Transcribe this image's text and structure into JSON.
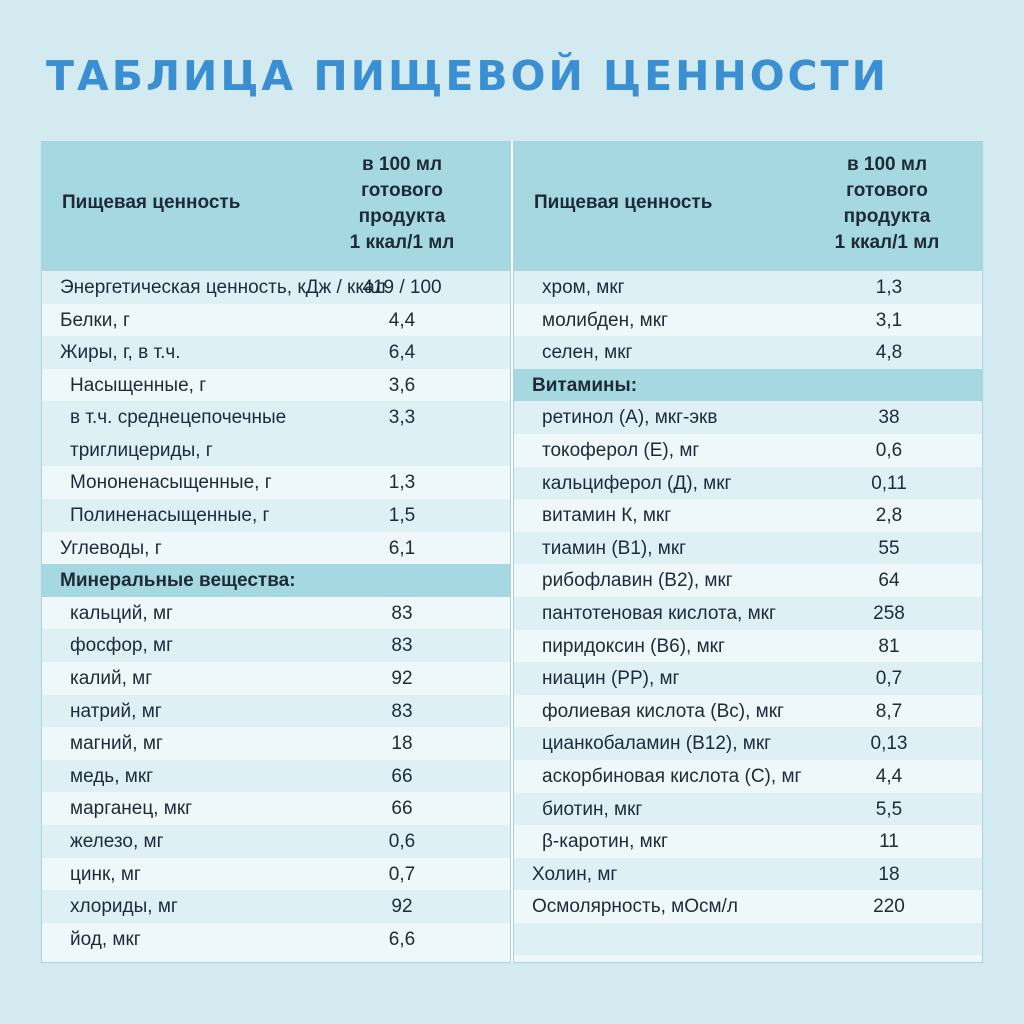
{
  "title": "ТАБЛИЦА ПИЩЕВОЙ ЦЕННОСТИ",
  "header": {
    "name": "Пищевая ценность",
    "unit_lines": [
      "в 100 мл",
      "готового",
      "продукта",
      "1 ккал/1 мл"
    ]
  },
  "left_rows": [
    {
      "name": "Энергетическая ценность, кДж / ккал",
      "value": "419 / 100",
      "indent": 0
    },
    {
      "name": "Белки, г",
      "value": "4,4",
      "indent": 0
    },
    {
      "name": "Жиры, г, в т.ч.",
      "value": "6,4",
      "indent": 0
    },
    {
      "name": "Насыщенные, г",
      "value": "3,6",
      "indent": 1
    },
    {
      "name": "в т.ч. среднецепочечные триглицериды, г",
      "name_lines": [
        "в т.ч. среднецепочечные",
        "триглицериды, г"
      ],
      "value": "3,3",
      "indent": 1
    },
    {
      "name": "Мононенасыщенные, г",
      "value": "1,3",
      "indent": 1
    },
    {
      "name": "Полиненасыщенные, г",
      "value": "1,5",
      "indent": 1
    },
    {
      "name": "Углеводы, г",
      "value": "6,1",
      "indent": 0
    },
    {
      "name": "Минеральные вещества:",
      "value": "",
      "section": true
    },
    {
      "name": "кальций, мг",
      "value": "83",
      "indent": 1
    },
    {
      "name": "фосфор, мг",
      "value": "83",
      "indent": 1
    },
    {
      "name": "калий, мг",
      "value": "92",
      "indent": 1
    },
    {
      "name": "натрий, мг",
      "value": "83",
      "indent": 1
    },
    {
      "name": "магний, мг",
      "value": "18",
      "indent": 1
    },
    {
      "name": "медь, мкг",
      "value": "66",
      "indent": 1
    },
    {
      "name": "марганец, мкг",
      "value": "66",
      "indent": 1
    },
    {
      "name": "железо, мг",
      "value": "0,6",
      "indent": 1
    },
    {
      "name": "цинк, мг",
      "value": "0,7",
      "indent": 1
    },
    {
      "name": "хлориды, мг",
      "value": "92",
      "indent": 1
    },
    {
      "name": "йод, мкг",
      "value": "6,6",
      "indent": 1
    }
  ],
  "right_rows": [
    {
      "name": "хром, мкг",
      "value": "1,3",
      "indent": 1
    },
    {
      "name": "молибден, мкг",
      "value": "3,1",
      "indent": 1
    },
    {
      "name": "селен, мкг",
      "value": "4,8",
      "indent": 1
    },
    {
      "name": "Витамины:",
      "value": "",
      "section": true
    },
    {
      "name": "ретинол (А), мкг-экв",
      "value": "38",
      "indent": 1
    },
    {
      "name": "токоферол (Е), мг",
      "value": "0,6",
      "indent": 1
    },
    {
      "name": "кальциферол (Д), мкг",
      "value": "0,11",
      "indent": 1
    },
    {
      "name": "витамин К, мкг",
      "value": "2,8",
      "indent": 1
    },
    {
      "name": "тиамин (В1), мкг",
      "value": "55",
      "indent": 1
    },
    {
      "name": "рибофлавин (В2), мкг",
      "value": "64",
      "indent": 1
    },
    {
      "name": "пантотеновая кислота, мкг",
      "value": "258",
      "indent": 1
    },
    {
      "name": "пиридоксин (В6), мкг",
      "value": "81",
      "indent": 1
    },
    {
      "name": "ниацин (РР), мг",
      "value": "0,7",
      "indent": 1
    },
    {
      "name": "фолиевая кислота (Вс), мкг",
      "value": "8,7",
      "indent": 1
    },
    {
      "name": "цианкобаламин (В12), мкг",
      "value": "0,13",
      "indent": 1
    },
    {
      "name": "аскорбиновая кислота (С), мг",
      "value": "4,4",
      "indent": 1
    },
    {
      "name": "биотин, мкг",
      "value": "5,5",
      "indent": 1
    },
    {
      "name": "β-каротин, мкг",
      "value": "11",
      "indent": 1
    },
    {
      "name": "Холин, мг",
      "value": "18",
      "indent": 0
    },
    {
      "name": "Осмолярность, мОсм/л",
      "value": "220",
      "indent": 0
    },
    {
      "name": "",
      "value": "",
      "indent": 0
    }
  ]
}
